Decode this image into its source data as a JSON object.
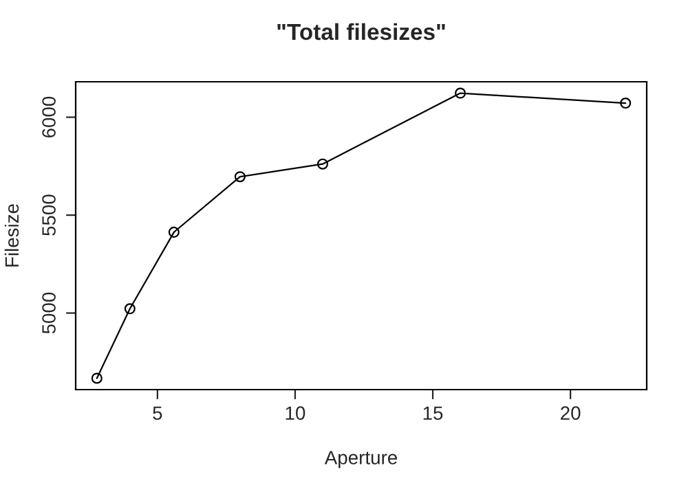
{
  "chart_data": {
    "type": "line",
    "title": "\"Total filesizes\"",
    "xlabel": "Aperture",
    "ylabel": "Filesize",
    "x": [
      2.8,
      4,
      5.6,
      8,
      11,
      16,
      22
    ],
    "values": [
      4667,
      5022,
      5413,
      5696,
      5761,
      6123,
      6072
    ],
    "color": "#000000",
    "marker": "circle",
    "line_style": "solid",
    "xlim": [
      2.03,
      22.77
    ],
    "ylim": [
      4609,
      6181
    ],
    "xticks": [
      5,
      10,
      15,
      20
    ],
    "yticks": [
      5000,
      5500,
      6000
    ],
    "grid": false,
    "legend": false
  }
}
